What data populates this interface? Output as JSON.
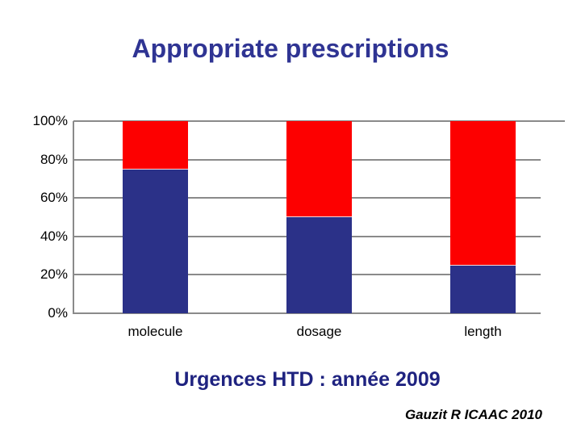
{
  "slide": {
    "title": "Appropriate prescriptions",
    "caption": "Urgences HTD : année 2009",
    "attribution": "Gauzit R   ICAAC 2010"
  },
  "colors": {
    "title_text": "#2F3493",
    "caption_text": "#1F2380",
    "attribution_text": "#000000",
    "axis_text": "#000000",
    "gridline": "#8A8A8A",
    "bar_blue": "#2B3188",
    "bar_red": "#FD0000",
    "background": "#FFFFFF"
  },
  "chart_data": {
    "type": "bar",
    "stacked": true,
    "orientation": "vertical",
    "title": "",
    "xlabel": "",
    "ylabel": "",
    "categories": [
      "molecule",
      "dosage",
      "length"
    ],
    "series": [
      {
        "name": "blue-segment",
        "color": "#2B3188",
        "values": [
          75,
          50,
          25
        ]
      },
      {
        "name": "red-segment",
        "color": "#FD0000",
        "values": [
          25,
          50,
          75
        ]
      }
    ],
    "y_ticks": [
      0,
      20,
      40,
      60,
      80,
      100
    ],
    "y_tick_labels": [
      "0%",
      "20%",
      "40%",
      "60%",
      "80%",
      "100%"
    ],
    "ylim": [
      0,
      100
    ],
    "grid": true,
    "legend": "none"
  }
}
